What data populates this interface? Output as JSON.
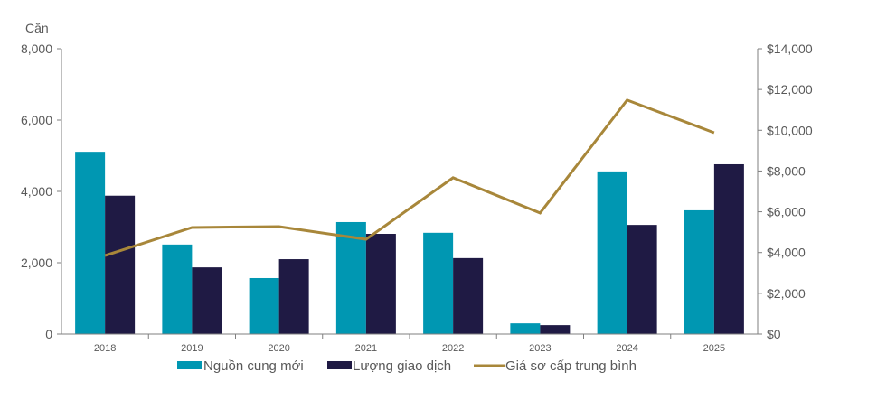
{
  "chart_data": {
    "type": "bar+line",
    "categories": [
      "2018",
      "2019",
      "2020",
      "2021",
      "2022",
      "2023",
      "2024",
      "2025"
    ],
    "series": [
      {
        "name": "Nguồn cung mới",
        "type": "bar",
        "axis": "left",
        "color": "#0097b2",
        "values": [
          5110,
          2510,
          1570,
          3140,
          2840,
          300,
          4560,
          3470
        ]
      },
      {
        "name": "Lượng giao dịch",
        "type": "bar",
        "axis": "left",
        "color": "#1f1a44",
        "values": [
          3880,
          1870,
          2100,
          2810,
          2130,
          250,
          3060,
          4760
        ]
      },
      {
        "name": "Giá sơ cấp trung bình",
        "type": "line",
        "axis": "right",
        "color": "#a8873a",
        "values": [
          3850,
          5230,
          5270,
          4650,
          7670,
          5940,
          11480,
          9880
        ]
      }
    ],
    "ylabel": "Căn",
    "ylim": [
      0,
      8000
    ],
    "yticks": [
      "0",
      "2,000",
      "4,000",
      "6,000",
      "8,000"
    ],
    "y2lim": [
      0,
      14000
    ],
    "y2ticks": [
      "$0",
      "$2,000",
      "$4,000",
      "$6,000",
      "$8,000",
      "$10,000",
      "$12,000",
      "$14,000"
    ],
    "grid": false,
    "legend": "bottom"
  }
}
